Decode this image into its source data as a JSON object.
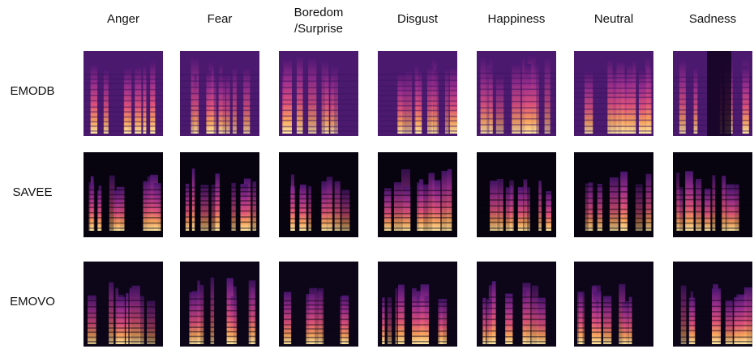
{
  "columns": [
    "Anger",
    "Fear",
    "Boredom\n/Surprise",
    "Disgust",
    "Happiness",
    "Neutral",
    "Sadness"
  ],
  "rows": [
    "EMODB",
    "SAVEE",
    "EMOVO"
  ]
}
